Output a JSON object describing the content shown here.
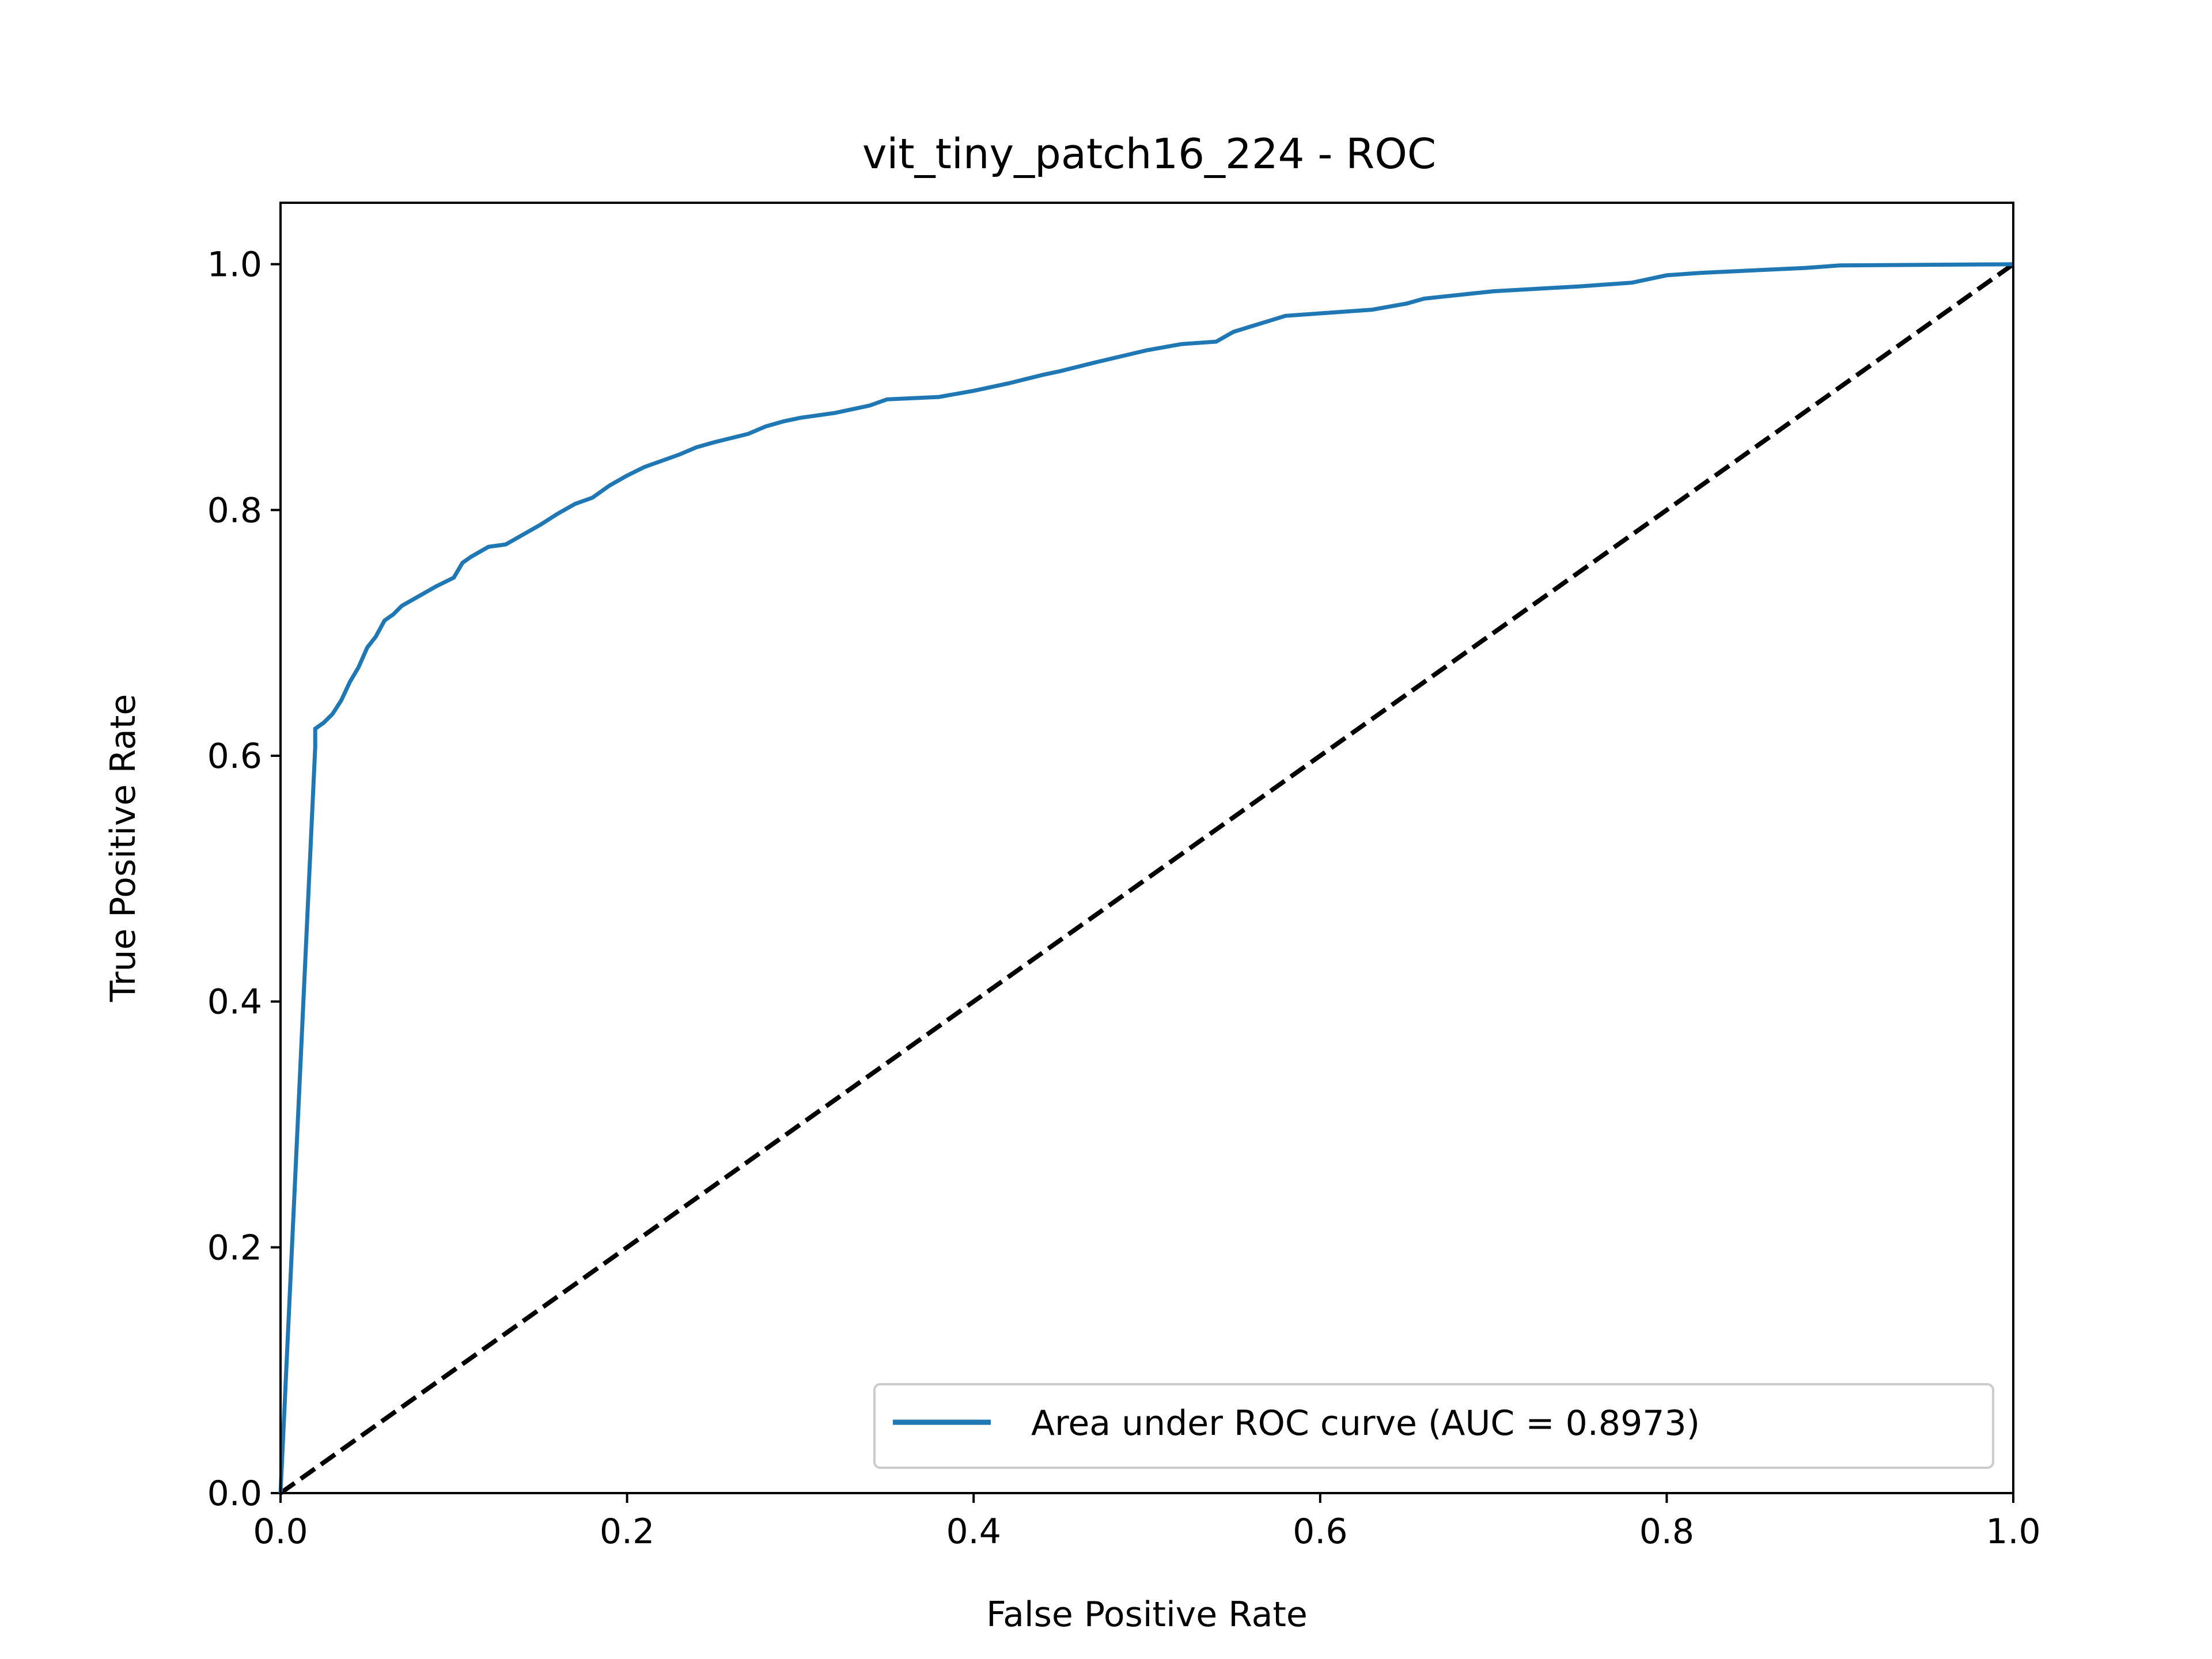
{
  "chart_data": {
    "type": "line",
    "title": "vit_tiny_patch16_224 - ROC",
    "xlabel": "False Positive Rate",
    "ylabel": "True Positive Rate",
    "xlim": [
      0.0,
      1.0
    ],
    "ylim": [
      0.0,
      1.05
    ],
    "xticks": [
      "0.0",
      "0.2",
      "0.4",
      "0.6",
      "0.8",
      "1.0"
    ],
    "yticks": [
      "0.0",
      "0.2",
      "0.4",
      "0.6",
      "0.8",
      "1.0"
    ],
    "grid": false,
    "legend_position": "lower-right",
    "series": [
      {
        "name": "Area under ROC curve (AUC = 0.8973)",
        "color": "#1f77b4",
        "x": [
          0.0,
          0.02,
          0.02,
          0.025,
          0.03,
          0.035,
          0.04,
          0.045,
          0.05,
          0.055,
          0.06,
          0.065,
          0.07,
          0.08,
          0.09,
          0.1,
          0.105,
          0.11,
          0.12,
          0.13,
          0.14,
          0.15,
          0.16,
          0.17,
          0.18,
          0.19,
          0.2,
          0.21,
          0.22,
          0.23,
          0.24,
          0.25,
          0.27,
          0.28,
          0.29,
          0.3,
          0.32,
          0.34,
          0.35,
          0.38,
          0.4,
          0.42,
          0.44,
          0.45,
          0.47,
          0.5,
          0.52,
          0.54,
          0.55,
          0.58,
          0.6,
          0.63,
          0.65,
          0.66,
          0.7,
          0.75,
          0.78,
          0.8,
          0.82,
          0.88,
          0.9,
          1.0
        ],
        "y": [
          0.0,
          0.607,
          0.622,
          0.627,
          0.634,
          0.645,
          0.66,
          0.672,
          0.688,
          0.697,
          0.71,
          0.715,
          0.722,
          0.73,
          0.738,
          0.745,
          0.757,
          0.762,
          0.77,
          0.772,
          0.78,
          0.788,
          0.797,
          0.805,
          0.81,
          0.82,
          0.828,
          0.835,
          0.84,
          0.845,
          0.851,
          0.855,
          0.862,
          0.868,
          0.872,
          0.875,
          0.879,
          0.885,
          0.89,
          0.892,
          0.897,
          0.903,
          0.91,
          0.913,
          0.92,
          0.93,
          0.935,
          0.937,
          0.945,
          0.958,
          0.96,
          0.963,
          0.968,
          0.972,
          0.978,
          0.982,
          0.985,
          0.991,
          0.993,
          0.997,
          0.999,
          1.0
        ]
      },
      {
        "name": "",
        "color": "#000000",
        "style": "dashed",
        "x": [
          0.0,
          1.0
        ],
        "y": [
          0.0,
          1.0
        ]
      }
    ]
  }
}
